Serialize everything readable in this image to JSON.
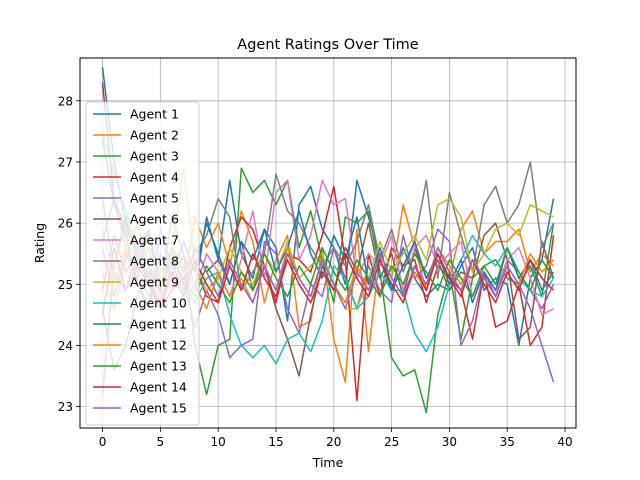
{
  "chart_data": {
    "type": "line",
    "title": "Agent Ratings Over Time",
    "xlabel": "Time",
    "ylabel": "Rating",
    "xlim": [
      -1.95,
      40.95
    ],
    "ylim": [
      22.65,
      28.7
    ],
    "xticks": [
      0,
      5,
      10,
      15,
      20,
      25,
      30,
      35,
      40
    ],
    "yticks": [
      23,
      24,
      25,
      26,
      27,
      28
    ],
    "grid": true,
    "legend_position": "upper-left",
    "x": [
      0,
      1,
      2,
      3,
      4,
      5,
      6,
      7,
      8,
      9,
      10,
      11,
      12,
      13,
      14,
      15,
      16,
      17,
      18,
      19,
      20,
      21,
      22,
      23,
      24,
      25,
      26,
      27,
      28,
      29,
      30,
      31,
      32,
      33,
      34,
      35,
      36,
      37,
      38,
      39
    ],
    "series": [
      {
        "name": "Agent 1",
        "color": "#1f77b4",
        "values": [
          28.55,
          27.0,
          26.0,
          25.5,
          25.9,
          25.0,
          25.6,
          25.3,
          24.9,
          26.1,
          25.4,
          26.7,
          25.5,
          25.1,
          25.9,
          25.6,
          24.4,
          26.3,
          26.6,
          25.9,
          25.6,
          25.0,
          26.7,
          26.1,
          25.4,
          24.9,
          25.6,
          25.1,
          24.8,
          25.0,
          24.9,
          25.3,
          25.6,
          24.9,
          25.1,
          25.0,
          24.0,
          25.1,
          25.4,
          26.4
        ]
      },
      {
        "name": "Agent 2",
        "color": "#ff7f0e",
        "values": [
          25.2,
          24.6,
          25.4,
          26.0,
          25.3,
          24.8,
          25.5,
          25.0,
          26.1,
          25.6,
          26.0,
          25.3,
          26.2,
          25.7,
          24.7,
          25.4,
          25.8,
          24.3,
          24.4,
          25.6,
          24.1,
          23.4,
          25.9,
          23.9,
          25.5,
          25.1,
          26.3,
          25.6,
          24.9,
          25.5,
          25.1,
          25.9,
          26.2,
          25.5,
          25.7,
          25.7,
          25.9,
          25.2,
          25.5,
          25.3
        ]
      },
      {
        "name": "Agent 3",
        "color": "#2ca02c",
        "values": [
          23.2,
          25.3,
          26.1,
          25.4,
          25.8,
          24.9,
          26.1,
          25.5,
          24.0,
          23.2,
          24.0,
          24.1,
          26.9,
          26.5,
          26.7,
          26.3,
          26.7,
          25.6,
          26.2,
          25.4,
          24.7,
          26.1,
          26.0,
          26.2,
          25.2,
          23.8,
          23.5,
          23.6,
          22.9,
          24.5,
          25.2,
          24.1,
          25.1,
          25.3,
          25.4,
          25.1,
          25.0,
          25.3,
          24.8,
          26.0
        ]
      },
      {
        "name": "Agent 4",
        "color": "#d62728",
        "values": [
          28.3,
          26.4,
          25.9,
          25.6,
          25.1,
          24.6,
          24.9,
          25.1,
          25.3,
          24.8,
          24.7,
          25.6,
          26.1,
          25.9,
          25.3,
          24.7,
          25.5,
          25.4,
          25.2,
          25.8,
          26.6,
          25.4,
          23.1,
          25.5,
          24.8,
          25.6,
          25.3,
          25.4,
          24.7,
          25.3,
          25.1,
          24.9,
          24.1,
          25.2,
          24.3,
          24.4,
          25.0,
          24.0,
          24.3,
          25.8
        ]
      },
      {
        "name": "Agent 5",
        "color": "#9467bd",
        "values": [
          25.6,
          24.8,
          25.5,
          25.1,
          24.6,
          25.9,
          25.3,
          25.0,
          24.3,
          24.9,
          24.5,
          23.8,
          24.0,
          24.1,
          25.7,
          25.5,
          24.6,
          24.2,
          25.0,
          24.8,
          25.6,
          25.1,
          24.6,
          25.3,
          24.9,
          24.7,
          25.8,
          25.1,
          25.3,
          25.9,
          25.7,
          24.0,
          24.4,
          25.2,
          24.8,
          25.4,
          25.2,
          24.9,
          24.6,
          25.0
        ]
      },
      {
        "name": "Agent 6",
        "color": "#8c564b",
        "values": [
          24.9,
          25.8,
          25.2,
          25.5,
          25.0,
          24.7,
          25.3,
          24.9,
          25.6,
          25.2,
          25.4,
          25.0,
          25.7,
          24.9,
          25.3,
          24.6,
          24.1,
          23.5,
          24.5,
          25.3,
          24.9,
          25.6,
          25.2,
          26.0,
          25.1,
          25.5,
          24.8,
          25.6,
          25.1,
          25.4,
          24.9,
          25.2,
          25.1,
          25.8,
          26.0,
          25.4,
          24.1,
          24.3,
          25.7,
          25.1
        ]
      },
      {
        "name": "Agent 7",
        "color": "#e377c2",
        "values": [
          25.9,
          25.1,
          24.9,
          25.7,
          25.3,
          25.0,
          25.6,
          25.3,
          24.9,
          25.5,
          25.2,
          24.8,
          25.4,
          26.2,
          25.1,
          26.5,
          26.7,
          25.4,
          25.8,
          26.7,
          26.3,
          26.4,
          25.1,
          25.5,
          25.3,
          25.8,
          24.9,
          25.6,
          25.8,
          25.3,
          25.5,
          25.7,
          24.8,
          25.2,
          24.9,
          25.4,
          25.6,
          25.1,
          24.5,
          24.6
        ]
      },
      {
        "name": "Agent 8",
        "color": "#7f7f7f",
        "values": [
          25.7,
          26.4,
          25.6,
          25.1,
          25.9,
          24.9,
          25.6,
          25.2,
          25.5,
          25.8,
          26.4,
          26.1,
          24.9,
          25.2,
          25.5,
          26.8,
          26.2,
          26.0,
          25.6,
          25.3,
          25.6,
          25.3,
          25.7,
          26.3,
          25.4,
          25.9,
          25.2,
          25.7,
          26.7,
          25.1,
          26.5,
          25.8,
          25.2,
          26.3,
          26.6,
          26.0,
          26.3,
          27.0,
          25.6,
          26.0
        ]
      },
      {
        "name": "Agent 9",
        "color": "#bcbd22",
        "values": [
          24.6,
          25.3,
          25.9,
          25.2,
          25.6,
          25.0,
          25.5,
          26.9,
          25.3,
          24.9,
          25.1,
          25.6,
          25.2,
          25.0,
          25.5,
          25.2,
          25.7,
          25.1,
          25.3,
          25.5,
          25.0,
          24.6,
          24.6,
          25.1,
          25.7,
          25.2,
          25.5,
          25.8,
          25.4,
          26.3,
          26.4,
          26.1,
          25.2,
          25.5,
          25.9,
          26.0,
          25.8,
          26.3,
          26.2,
          26.1
        ]
      },
      {
        "name": "Agent 10",
        "color": "#17becf",
        "values": [
          27.5,
          26.8,
          26.2,
          25.6,
          25.1,
          25.7,
          25.3,
          25.0,
          24.7,
          25.1,
          25.2,
          24.5,
          24.0,
          23.8,
          24.0,
          23.7,
          24.1,
          24.2,
          23.9,
          24.4,
          25.3,
          25.1,
          24.6,
          24.8,
          25.2,
          24.9,
          24.9,
          24.2,
          23.9,
          24.3,
          25.0,
          25.4,
          25.8,
          25.5,
          25.3,
          25.6,
          25.1,
          24.9,
          24.8,
          25.1
        ]
      },
      {
        "name": "Agent 11",
        "color": "#1f77b4",
        "values": [
          27.4,
          26.3,
          25.8,
          25.0,
          24.6,
          25.5,
          25.1,
          25.7,
          25.2,
          26.0,
          25.5,
          25.0,
          25.7,
          25.4,
          25.9,
          25.2,
          25.6,
          26.2,
          25.5,
          25.1,
          25.8,
          25.4,
          26.1,
          25.0,
          25.6,
          24.9,
          25.3,
          25.7,
          25.1,
          25.5,
          25.0,
          25.4,
          24.7,
          25.2,
          24.9,
          25.6,
          25.1,
          25.4,
          24.9,
          25.2
        ]
      },
      {
        "name": "Agent 12",
        "color": "#ff7f0e",
        "values": [
          25.4,
          25.0,
          25.6,
          25.2,
          24.8,
          25.3,
          24.9,
          25.5,
          25.0,
          24.6,
          25.2,
          24.8,
          25.1,
          24.7,
          25.3,
          24.9,
          25.6,
          25.1,
          24.8,
          25.4,
          25.0,
          24.7,
          25.3,
          24.9,
          25.5,
          25.1,
          24.8,
          25.2,
          24.9,
          25.6,
          25.3,
          25.0,
          25.4,
          25.1,
          24.8,
          25.3,
          25.0,
          25.5,
          25.2,
          25.4
        ]
      },
      {
        "name": "Agent 13",
        "color": "#2ca02c",
        "values": [
          24.6,
          23.6,
          24.0,
          24.8,
          25.2,
          24.9,
          25.4,
          25.1,
          24.8,
          25.3,
          25.0,
          24.7,
          25.2,
          24.9,
          25.5,
          25.1,
          24.8,
          25.3,
          25.0,
          25.6,
          25.2,
          24.9,
          25.4,
          25.1,
          24.8,
          25.3,
          25.0,
          25.5,
          25.2,
          24.9,
          25.4,
          25.1,
          24.8,
          25.3,
          25.0,
          25.6,
          25.2,
          24.9,
          25.4,
          25.1
        ]
      },
      {
        "name": "Agent 14",
        "color": "#d62728",
        "values": [
          24.5,
          25.6,
          24.9,
          25.3,
          25.0,
          24.6,
          25.2,
          24.8,
          25.4,
          25.0,
          24.7,
          25.3,
          24.9,
          25.5,
          25.1,
          24.8,
          25.4,
          25.0,
          24.7,
          25.2,
          24.9,
          25.5,
          25.1,
          24.8,
          25.4,
          25.0,
          24.7,
          25.3,
          24.9,
          25.5,
          25.1,
          24.8,
          25.4,
          25.0,
          24.7,
          25.2,
          24.9,
          25.4,
          25.1,
          24.9
        ]
      },
      {
        "name": "Agent 15",
        "color": "#9467bd",
        "values": [
          26.4,
          25.2,
          24.9,
          25.5,
          25.1,
          24.7,
          25.3,
          24.9,
          25.6,
          25.2,
          24.8,
          25.4,
          25.0,
          24.7,
          25.3,
          24.9,
          25.5,
          25.1,
          24.8,
          25.4,
          25.0,
          24.6,
          25.2,
          24.9,
          25.5,
          25.1,
          24.8,
          25.3,
          25.0,
          25.6,
          25.2,
          24.9,
          25.4,
          25.1,
          24.8,
          25.3,
          25.0,
          24.6,
          24.0,
          23.4
        ]
      }
    ]
  }
}
